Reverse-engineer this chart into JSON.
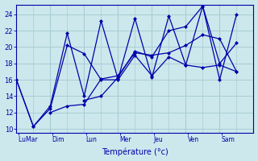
{
  "background_color": "#cce8ec",
  "grid_color": "#a8ccd4",
  "line_color": "#0000aa",
  "xlabel": "Température (°c)",
  "ylim": [
    9.5,
    25.2
  ],
  "yticks": [
    10,
    12,
    14,
    16,
    18,
    20,
    22,
    24
  ],
  "ytick_labels": [
    "10",
    "12",
    "14",
    "16",
    "18",
    "20",
    "22",
    "24"
  ],
  "day_labels": [
    "Lu​Mar",
    "Dim",
    "Lun",
    "Mer",
    "Jeu",
    "Ven",
    "Sam"
  ],
  "day_sep_x": [
    0,
    38,
    76,
    114,
    152,
    190,
    228,
    266
  ],
  "xlim": [
    0,
    266
  ],
  "line1_xy": [
    [
      0,
      16
    ],
    [
      19,
      10.3
    ],
    [
      38,
      12.5
    ],
    [
      57,
      20.2
    ],
    [
      76,
      19.2
    ],
    [
      95,
      16.0
    ],
    [
      114,
      16.0
    ],
    [
      133,
      19.0
    ],
    [
      152,
      16.5
    ],
    [
      171,
      18.8
    ],
    [
      190,
      17.8
    ],
    [
      209,
      17.5
    ],
    [
      228,
      17.8
    ],
    [
      247,
      17.0
    ]
  ],
  "line2_xy": [
    [
      0,
      16
    ],
    [
      19,
      10.3
    ],
    [
      38,
      12.8
    ],
    [
      57,
      21.7
    ],
    [
      76,
      14.0
    ],
    [
      95,
      23.2
    ],
    [
      114,
      16.1
    ],
    [
      133,
      23.5
    ],
    [
      152,
      16.3
    ],
    [
      171,
      23.8
    ],
    [
      190,
      17.8
    ],
    [
      209,
      25.0
    ],
    [
      228,
      16.0
    ],
    [
      247,
      24.0
    ]
  ],
  "line3_xy": [
    [
      38,
      12.0
    ],
    [
      57,
      12.8
    ],
    [
      76,
      13.0
    ],
    [
      95,
      16.1
    ],
    [
      114,
      16.5
    ],
    [
      133,
      19.3
    ],
    [
      152,
      19.0
    ],
    [
      171,
      19.3
    ],
    [
      190,
      20.2
    ],
    [
      209,
      21.5
    ],
    [
      228,
      21.0
    ],
    [
      247,
      17.0
    ]
  ],
  "line4_xy": [
    [
      76,
      13.5
    ],
    [
      95,
      14.0
    ],
    [
      114,
      16.3
    ],
    [
      133,
      19.5
    ],
    [
      152,
      18.8
    ],
    [
      171,
      22.0
    ],
    [
      190,
      22.5
    ],
    [
      209,
      25.0
    ],
    [
      228,
      18.0
    ],
    [
      247,
      20.5
    ]
  ]
}
